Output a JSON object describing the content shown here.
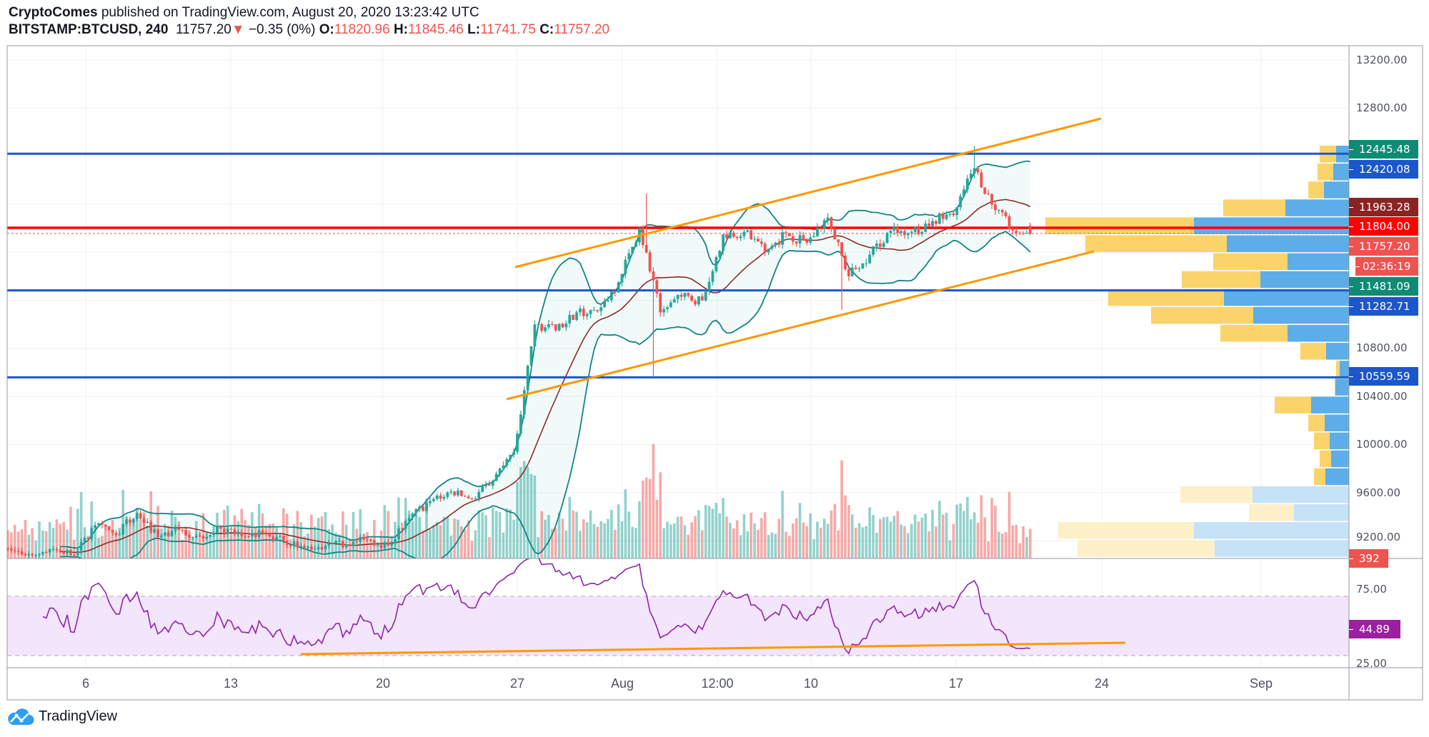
{
  "header": {
    "author": "CryptoComes",
    "published": "published on TradingView.com, August 20, 2020 13:23:42 UTC",
    "symbol": "BITSTAMP:BTCUSD, 240",
    "last": "11757.20",
    "change": "−0.35 (0%)",
    "o_label": "O:",
    "o": "11820.96",
    "h_label": "H:",
    "h": "11845.46",
    "l_label": "L:",
    "l": "11741.75",
    "c_label": "C:",
    "c": "11757.20"
  },
  "colors": {
    "up": "#26a69a",
    "down": "#ef5350",
    "bb": "#138484",
    "basis": "#8b2b2b",
    "rsi": "#8e24aa",
    "hline_blue": "#1c56cc",
    "hline_red": "#ff0000",
    "channel": "#ff9800",
    "vp_up": "#5dade8",
    "vp_down": "#fbd36b"
  },
  "price_axis": {
    "ticks": [
      "13200.00",
      "12800.00",
      "10800.00",
      "10400.00",
      "10000.00",
      "9600.00",
      "9200.00"
    ],
    "labels": [
      {
        "text": "12445.48",
        "color": "#0f8a74",
        "meaning": "BB upper"
      },
      {
        "text": "12420.08",
        "color": "#1c56cc",
        "meaning": "horizontal line"
      },
      {
        "text": "11963.28",
        "color": "#8b2323",
        "meaning": "BB basis"
      },
      {
        "text": "11804.00",
        "color": "#ff0000",
        "meaning": "horizontal line"
      },
      {
        "text": "11757.20",
        "color": "#ef5350",
        "meaning": "last price"
      },
      {
        "text": "02:36:19",
        "color": "#ef5350",
        "meaning": "bar countdown"
      },
      {
        "text": "11481.09",
        "color": "#0f8a74",
        "meaning": "BB lower"
      },
      {
        "text": "11282.71",
        "color": "#1c56cc",
        "meaning": "horizontal line"
      },
      {
        "text": "10559.59",
        "color": "#1c56cc",
        "meaning": "horizontal line"
      },
      {
        "text": "392",
        "color": "#ef5350",
        "meaning": "volume"
      }
    ]
  },
  "rsi_axis": {
    "ticks": [
      "75.00",
      "25.00"
    ],
    "value": "44.89",
    "value_color": "#9c1fa0"
  },
  "time_axis": [
    "6",
    "13",
    "20",
    "27",
    "Aug",
    "12:00",
    "10",
    "17",
    "24",
    "Sep"
  ],
  "logo": "TradingView",
  "chart_data": {
    "type": "candlestick",
    "title": "BITSTAMP:BTCUSD, 240",
    "interval_hours": 4,
    "start_date": "2020-07-02",
    "ylim": [
      9050,
      13300
    ],
    "daily_closes": [
      9120,
      9080,
      9130,
      9080,
      9330,
      9250,
      9430,
      9230,
      9290,
      9240,
      9300,
      9240,
      9260,
      9200,
      9140,
      9160,
      9170,
      9210,
      9160,
      9390,
      9530,
      9610,
      9550,
      9700,
      9940,
      11000,
      10950,
      11100,
      11110,
      11350,
      11800,
      11100,
      11230,
      11200,
      11750,
      11770,
      11600,
      11760,
      11680,
      11890,
      11400,
      11580,
      11780,
      11770,
      11860,
      11910,
      12300,
      11950,
      11760,
      11757.2
    ],
    "extremes": [
      {
        "day": 31,
        "bar": 1,
        "high": 12090
      },
      {
        "day": 31,
        "bar": 3,
        "low": 10560
      },
      {
        "day": 40,
        "bar": 3,
        "low": 11120
      },
      {
        "day": 46,
        "bar": 5,
        "high": 12486
      }
    ],
    "last_bar": {
      "open": 11820.96,
      "high": 11845.46,
      "low": 11741.75,
      "close": 11757.2,
      "volume": 392
    },
    "horizontal_lines": [
      {
        "price": 12420.08,
        "color": "blue"
      },
      {
        "price": 11804.0,
        "color": "red"
      },
      {
        "price": 11282.71,
        "color": "blue"
      },
      {
        "price": 10559.59,
        "color": "blue"
      }
    ],
    "indicators": {
      "bollinger": {
        "length": 20,
        "mult": 2
      },
      "rsi": {
        "length": 14,
        "upper": 70,
        "lower": 30
      }
    },
    "volume_profile": {
      "price_high": 12487,
      "row_size": 149,
      "rows": [
        {
          "up": 18,
          "down": 23
        },
        {
          "up": 22,
          "down": 22
        },
        {
          "up": 35,
          "down": 22
        },
        {
          "up": 89,
          "down": 87
        },
        {
          "up": 217,
          "down": 208
        },
        {
          "up": 171,
          "down": 198
        },
        {
          "up": 86,
          "down": 104
        },
        {
          "up": 124,
          "down": 110
        },
        {
          "up": 175,
          "down": 162
        },
        {
          "up": 134,
          "down": 143
        },
        {
          "up": 86,
          "down": 94
        },
        {
          "up": 32,
          "down": 36
        },
        {
          "up": 13,
          "down": 5
        },
        {
          "up": 19,
          "down": 1
        },
        {
          "up": 53,
          "down": 51
        },
        {
          "up": 34,
          "down": 23
        },
        {
          "up": 27,
          "down": 22
        },
        {
          "up": 25,
          "down": 16
        },
        {
          "up": 33,
          "down": 16
        },
        {
          "up": 135,
          "down": 101,
          "faded": true
        },
        {
          "up": 77,
          "down": 63,
          "faded": true
        },
        {
          "up": 217,
          "down": 190,
          "faded": true
        },
        {
          "up": 188,
          "down": 192,
          "faded": true
        }
      ]
    }
  }
}
